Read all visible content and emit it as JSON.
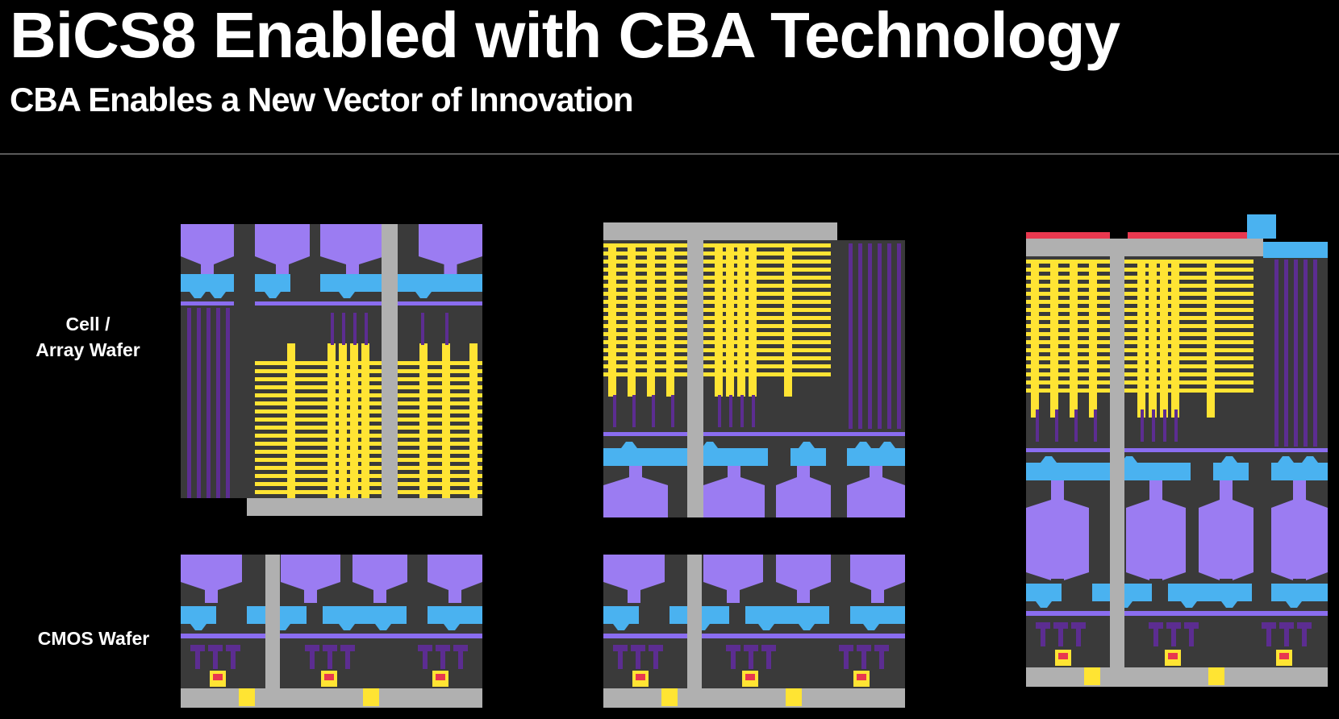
{
  "slide": {
    "title": "BiCS8 Enabled with CBA Technology",
    "subtitle": "CBA Enables a New Vector of Innovation"
  },
  "labels": {
    "cell_array_line1": "Cell /",
    "cell_array_line2": "Array Wafer",
    "cmos": "CMOS Wafer"
  },
  "colors": {
    "background": "#000000",
    "substrate": "#3a3a3a",
    "pad_purple": "#9b7cf2",
    "interconnect_blue": "#4ab2f0",
    "via_purple": "#5c2d91",
    "thin_purple": "#8a6df0",
    "word_line_yellow": "#ffe433",
    "through_via_gray": "#b0b0b0",
    "bond_red": "#e8384f",
    "divider": "#5a5a5a"
  },
  "diagram": {
    "stages": [
      "array-wafer-and-cmos-wafer",
      "flipped-array-on-cmos",
      "bonded-cba-stack"
    ]
  }
}
